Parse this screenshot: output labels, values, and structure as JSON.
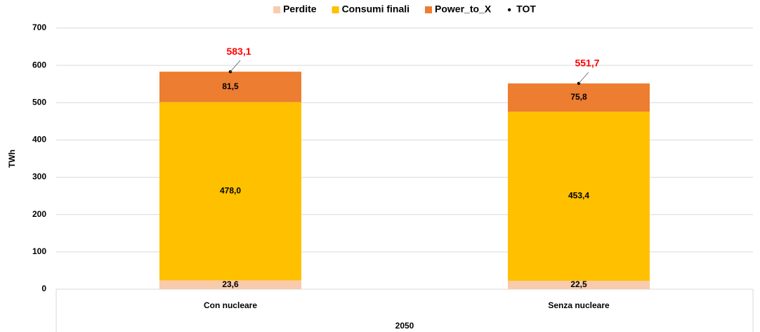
{
  "chart_data": {
    "type": "bar",
    "stacked": true,
    "ylabel": "TWh",
    "group_label": "2050",
    "categories": [
      "Con nucleare",
      "Senza nucleare"
    ],
    "series": [
      {
        "name": "Perdite",
        "color": "#f8cbad",
        "values": [
          23.6,
          22.5
        ],
        "value_labels": [
          "23,6",
          "22,5"
        ]
      },
      {
        "name": "Consumi finali",
        "color": "#ffc000",
        "values": [
          478.0,
          453.4
        ],
        "value_labels": [
          "478,0",
          "453,4"
        ]
      },
      {
        "name": "Power_to_X",
        "color": "#ed7d31",
        "values": [
          81.5,
          75.8
        ],
        "value_labels": [
          "81,5",
          "75,8"
        ]
      },
      {
        "name": "TOT",
        "color": "#000000",
        "kind": "point",
        "label_color": "#ff0000",
        "values": [
          583.1,
          551.7
        ],
        "value_labels": [
          "583,1",
          "551,7"
        ]
      }
    ],
    "ylim": [
      0,
      700
    ],
    "yticks": [
      0,
      100,
      200,
      300,
      400,
      500,
      600,
      700
    ],
    "grid": true,
    "legend": "top"
  }
}
